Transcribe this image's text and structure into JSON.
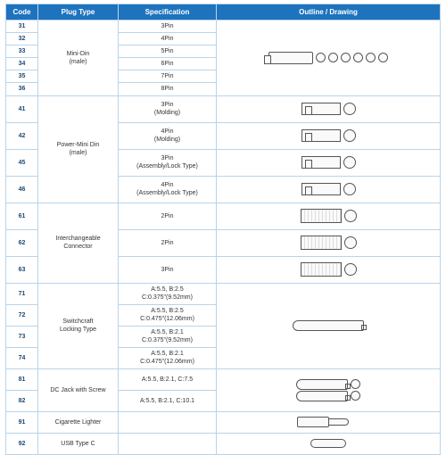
{
  "headers": {
    "code": "Code",
    "plug": "Plug Type",
    "spec": "Specification",
    "outline": "Outline / Drawing"
  },
  "groups": [
    {
      "plug": "Mini-Din\n(male)",
      "rows": [
        {
          "code": "31",
          "spec": "3Pin"
        },
        {
          "code": "32",
          "spec": "4Pin"
        },
        {
          "code": "33",
          "spec": "5Pin"
        },
        {
          "code": "34",
          "spec": "6Pin"
        },
        {
          "code": "35",
          "spec": "7Pin"
        },
        {
          "code": "36",
          "spec": "8Pin"
        }
      ],
      "drawing": "minidin"
    },
    {
      "plug": "Power-Mini Din\n(male)",
      "rows": [
        {
          "code": "41",
          "spec": "3Pin\n(Molding)",
          "draw": "pm"
        },
        {
          "code": "42",
          "spec": "4Pin\n(Molding)",
          "draw": "pm"
        },
        {
          "code": "45",
          "spec": "3Pin\n(Assembly/Lock Type)",
          "draw": "pm"
        },
        {
          "code": "46",
          "spec": "4Pin\n(Assembly/Lock Type)",
          "draw": "pm"
        }
      ]
    },
    {
      "plug": "Interchangeable\nConnector",
      "rows": [
        {
          "code": "61",
          "spec": "2Pin",
          "draw": "ic"
        },
        {
          "code": "62",
          "spec": "2Pin",
          "draw": "ic"
        },
        {
          "code": "63",
          "spec": "3Pin",
          "draw": "ic"
        }
      ]
    },
    {
      "plug": "Switchcraft\nLocking Type",
      "rows": [
        {
          "code": "71",
          "spec": "A:5.5, B:2.5\nC:0.375\"(9.52mm)"
        },
        {
          "code": "72",
          "spec": "A:5.5, B:2.5\nC:0.475\"(12.06mm)"
        },
        {
          "code": "73",
          "spec": "A:5.5, B:2.1\nC:0.375\"(9.52mm)"
        },
        {
          "code": "74",
          "spec": "A:5.5, B:2.1\nC:0.475\"(12.06mm)"
        }
      ],
      "drawing": "barrel"
    },
    {
      "plug": "DC Jack with Screw",
      "rows": [
        {
          "code": "81",
          "spec": "A:5.5, B:2.1, C:7.5"
        },
        {
          "code": "82",
          "spec": "A:5.5, B:2.1, C:10.1"
        }
      ],
      "drawing": "screw"
    },
    {
      "plug": "Cigarette Lighter",
      "rows": [
        {
          "code": "91",
          "spec": ""
        }
      ],
      "drawing": "lighter"
    },
    {
      "plug": "USB Type C",
      "rows": [
        {
          "code": "92",
          "spec": ""
        }
      ],
      "drawing": "usbc"
    }
  ],
  "colors": {
    "header_bg": "#1e73be",
    "border": "#b8d4ea",
    "code_text": "#1e4a72"
  }
}
